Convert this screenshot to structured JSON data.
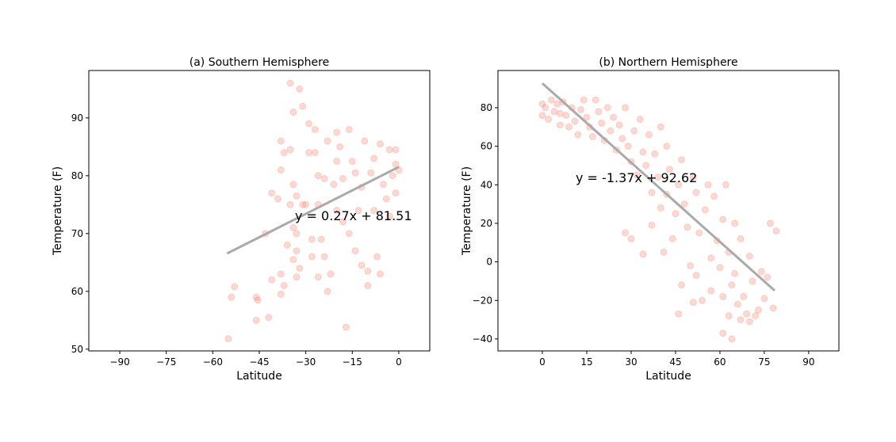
{
  "chart_data": [
    {
      "type": "scatter",
      "title": "(a) Southern Hemisphere",
      "x_label": "Latitude",
      "y_label": "Temperature (F)",
      "annotation": "y = 0.27x + 81.51",
      "color": "#fa8072",
      "x": [
        -55,
        -54,
        -53,
        -46,
        -45.5,
        -46,
        -42,
        -43,
        -41,
        -41,
        -39,
        -38,
        -38,
        -37,
        -38,
        -37,
        -38,
        -36,
        -35,
        -34,
        -35,
        -34,
        -35,
        -33,
        -34,
        -33,
        -33,
        -34,
        -32,
        -31,
        -32,
        -33,
        -30,
        -29,
        -29,
        -28,
        -27,
        -27,
        -26,
        -26,
        -25,
        -26,
        -24,
        -24,
        -23,
        -22,
        -23,
        -21,
        -20,
        -20,
        -19,
        -18,
        -18,
        -17,
        -16,
        -15,
        -14,
        -14,
        -13,
        -12,
        -11,
        -10,
        -10,
        -9,
        -8,
        -7,
        -6,
        -6,
        -5,
        -4,
        -3,
        -2,
        -1,
        -1,
        0,
        -1,
        -3,
        -8,
        -12,
        -16,
        -20,
        -28,
        -31
      ],
      "y": [
        51.8,
        59,
        60.8,
        59,
        58.5,
        55,
        55.5,
        70,
        62,
        77,
        76,
        81,
        86,
        84,
        63,
        61,
        59.5,
        68,
        96,
        91,
        84.5,
        78.5,
        75,
        76.5,
        71,
        70,
        67,
        65.5,
        95,
        92,
        64,
        62.5,
        75,
        89,
        84,
        66,
        88,
        84,
        80,
        75,
        69,
        62.5,
        66,
        79.5,
        86,
        63,
        60,
        78.5,
        82.5,
        87.5,
        85,
        79.5,
        72,
        53.8,
        88,
        82.5,
        67,
        80.5,
        74,
        64.5,
        86,
        63.5,
        61,
        80.5,
        83,
        66,
        63,
        85.5,
        78.5,
        76,
        84.5,
        80,
        84.5,
        82,
        81,
        77,
        73,
        74,
        78,
        70,
        74,
        69,
        75
      ],
      "fit": {
        "color": "#aaaaaa",
        "x": [
          -55.4,
          0
        ],
        "y": [
          66.55,
          81.51
        ]
      },
      "xlim": [
        -100,
        10
      ],
      "ylim": [
        49.7,
        98.2
      ],
      "xticks": [
        {
          "value": -90,
          "label": "−90"
        },
        {
          "value": -75,
          "label": "−75"
        },
        {
          "value": -60,
          "label": "−60"
        },
        {
          "value": -45,
          "label": "−45"
        },
        {
          "value": -30,
          "label": "−30"
        },
        {
          "value": -15,
          "label": "−15"
        },
        0
      ],
      "yticks": [
        50,
        60,
        70,
        80,
        90
      ]
    },
    {
      "type": "scatter",
      "title": "(b) Northern Hemisphere",
      "x_label": "Latitude",
      "y_label": "Temperature (F)",
      "annotation": "y = -1.37x + 92.62",
      "color": "#fa8072",
      "x": [
        0,
        0,
        1,
        2,
        3,
        4,
        5,
        6,
        6,
        7,
        8,
        9,
        10,
        11,
        12,
        13,
        14,
        15,
        16,
        17,
        18,
        19,
        20,
        21,
        22,
        23,
        24,
        25,
        26,
        27,
        28,
        28,
        29,
        30,
        30,
        31,
        32,
        33,
        34,
        34,
        35,
        36,
        37,
        37,
        38,
        39,
        40,
        40,
        41,
        42,
        42,
        43,
        44,
        45,
        46,
        47,
        47,
        48,
        49,
        50,
        51,
        52,
        52,
        53,
        54,
        55,
        56,
        57,
        57,
        58,
        59,
        60,
        61,
        61,
        62,
        63,
        63,
        64,
        65,
        65,
        66,
        67,
        67,
        68,
        69,
        70,
        70,
        71,
        72,
        73,
        74,
        75,
        76,
        77,
        78,
        79,
        64,
        61,
        46,
        51
      ],
      "y": [
        82,
        76,
        80,
        74,
        84,
        78,
        82,
        77,
        71,
        83,
        76,
        70,
        80,
        73,
        66,
        79,
        84,
        75,
        70,
        65,
        84,
        78,
        72,
        63,
        80,
        68,
        75,
        58,
        71,
        64,
        15,
        80,
        60,
        52,
        12,
        68,
        45,
        74,
        4,
        57,
        50,
        66,
        36,
        19,
        56,
        44,
        28,
        70,
        5,
        35,
        60,
        48,
        12,
        25,
        40,
        53,
        -12,
        30,
        18,
        -2,
        44,
        -7,
        36,
        15,
        -20,
        27,
        40,
        2,
        -15,
        34,
        11,
        -3,
        22,
        -18,
        40,
        5,
        -28,
        -12,
        20,
        -6,
        -22,
        -30,
        12,
        -18,
        -27,
        -31,
        3,
        -10,
        -28,
        -25,
        -5,
        -19,
        -8,
        20,
        -24,
        16,
        -40,
        -37,
        -27,
        -21
      ],
      "fit": {
        "color": "#aaaaaa",
        "x": [
          0,
          78.5
        ],
        "y": [
          92.62,
          -14.93
        ]
      },
      "xlim": [
        -15,
        100.2
      ],
      "ylim": [
        -46.2,
        99.3
      ],
      "xticks": [
        0,
        15,
        30,
        45,
        60,
        75,
        90
      ],
      "yticks": [
        {
          "value": -40,
          "label": "−40"
        },
        {
          "value": -20,
          "label": "−20"
        },
        0,
        20,
        40,
        60,
        80
      ]
    }
  ]
}
